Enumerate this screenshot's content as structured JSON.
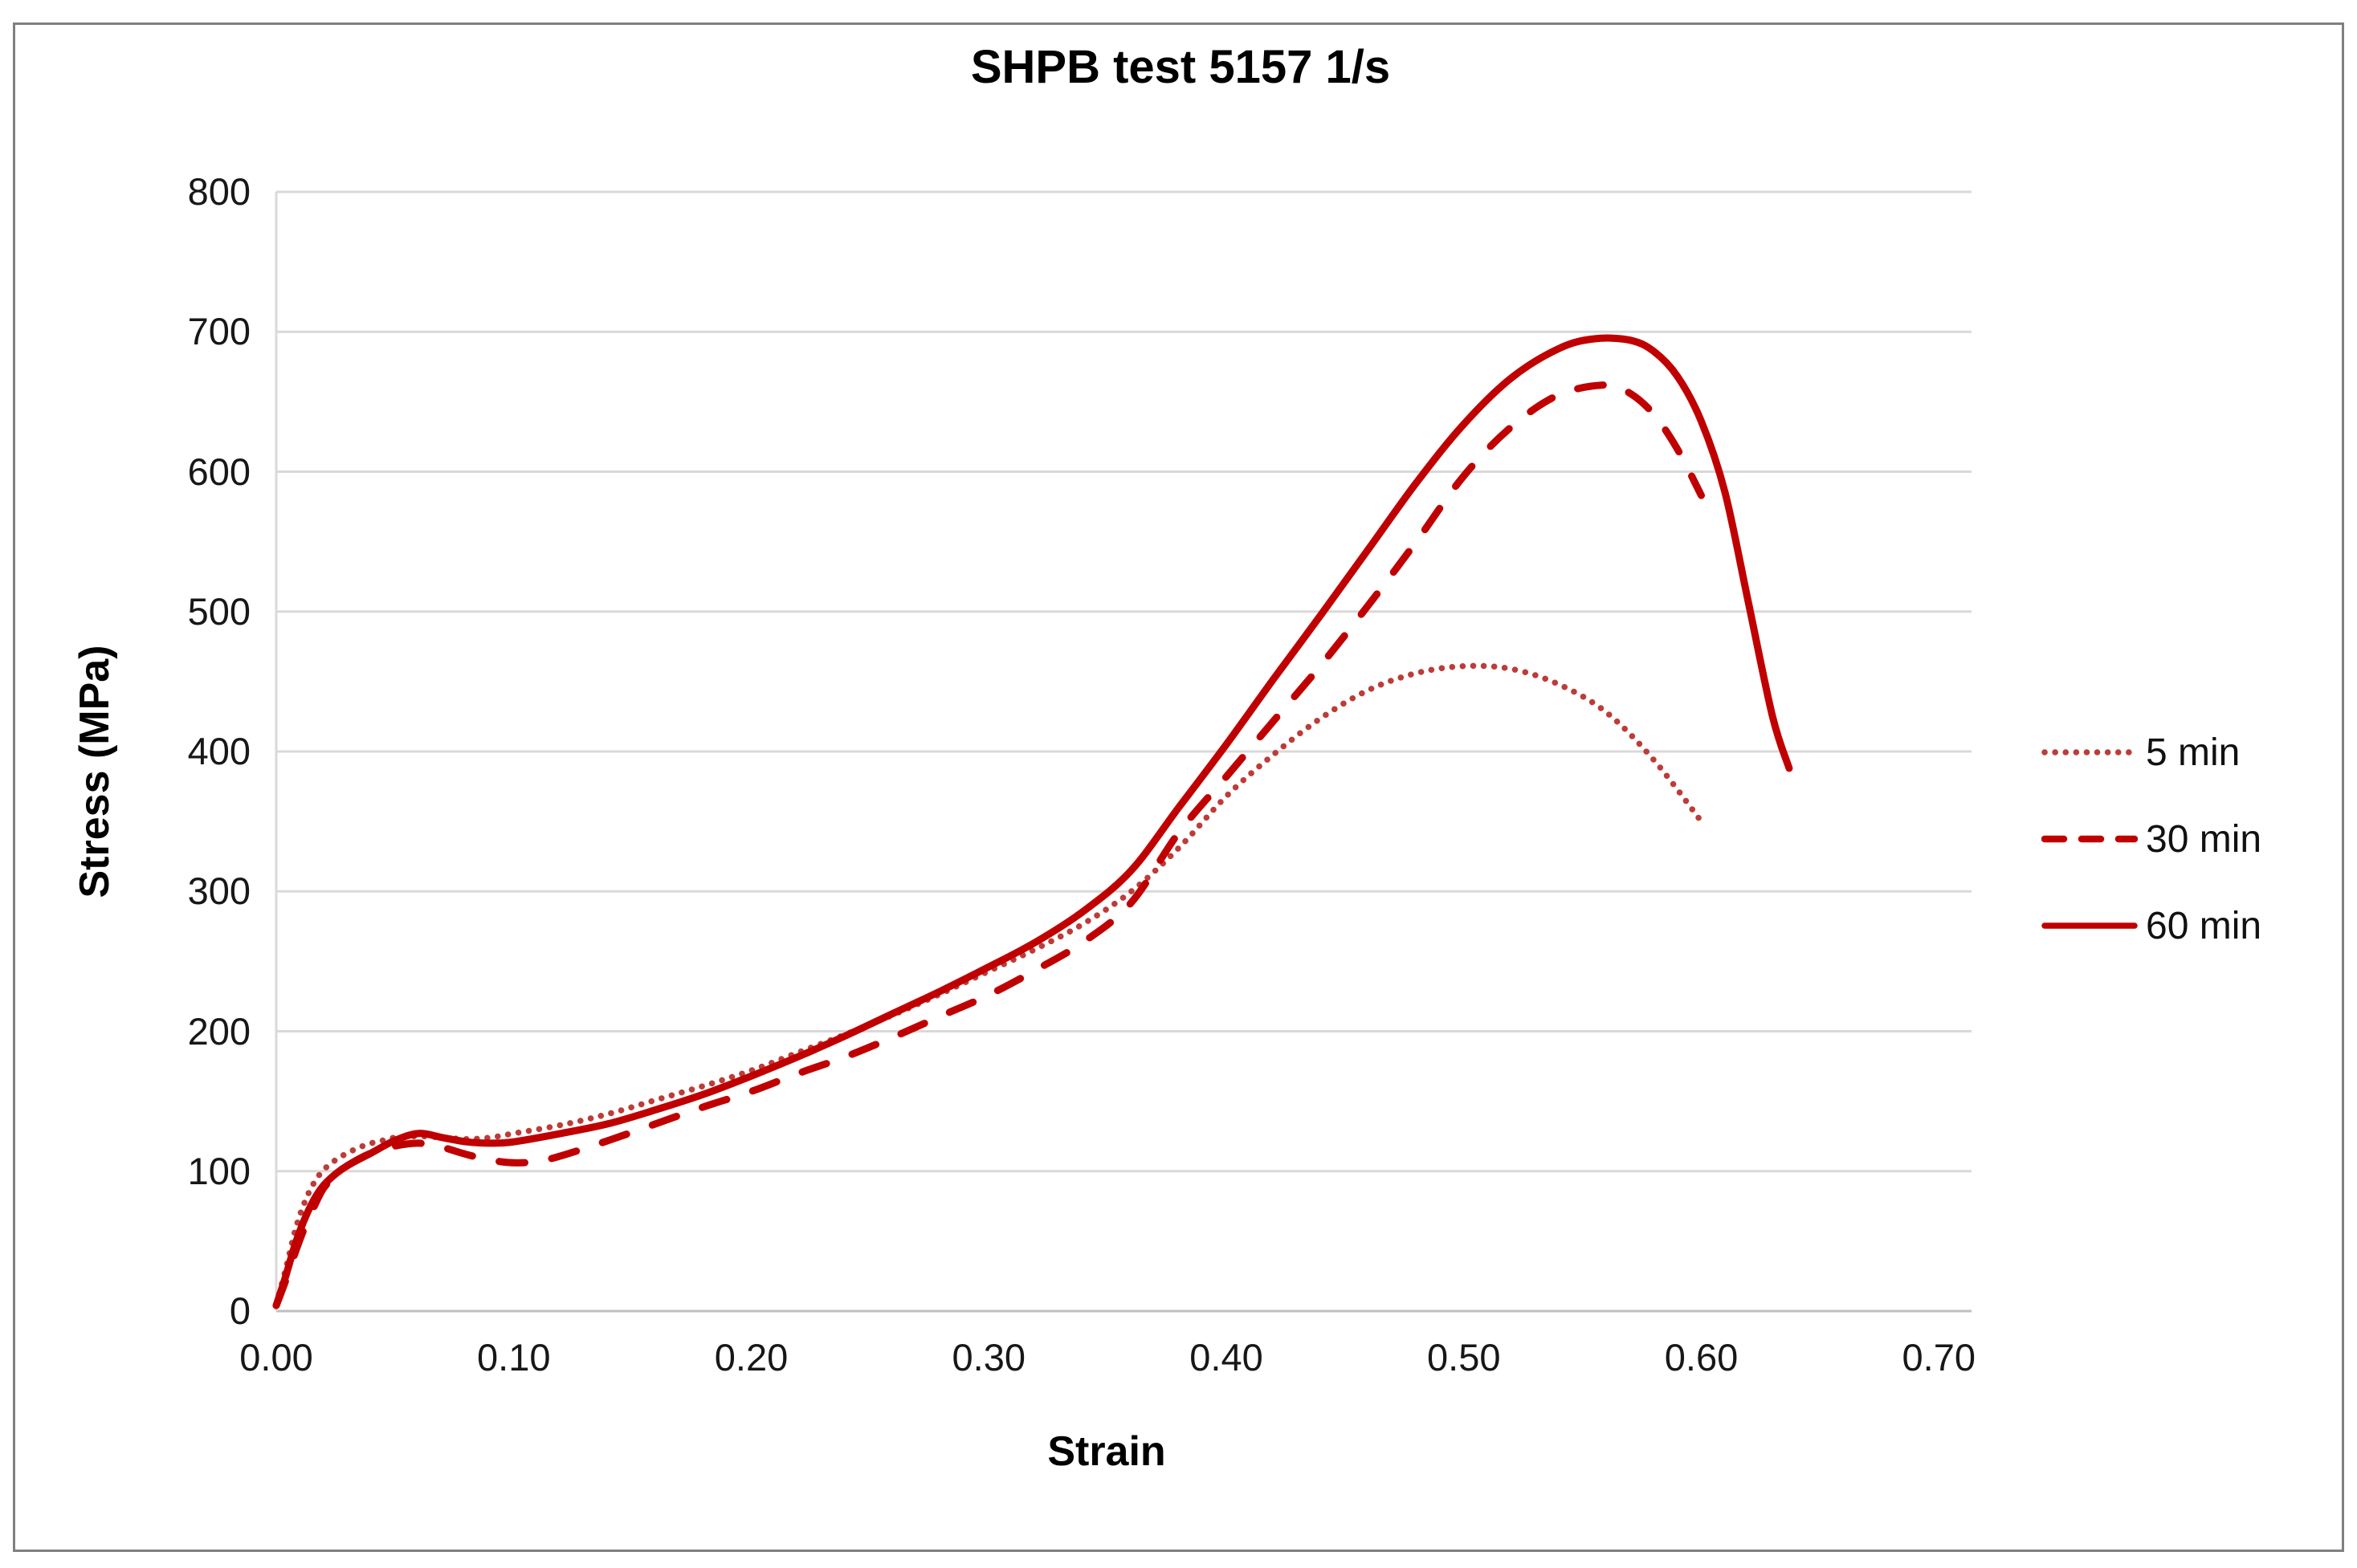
{
  "page": {
    "background": "#FFFFFF",
    "border_color": "#808080"
  },
  "chart_data": {
    "type": "line",
    "title": "SHPB test 5157 1/s",
    "xlabel": "Strain",
    "ylabel": "Stress (MPa)",
    "xlim": [
      0.0,
      0.7
    ],
    "ylim": [
      0,
      800
    ],
    "x_ticks": [
      "0.00",
      "0.10",
      "0.20",
      "0.30",
      "0.40",
      "0.50",
      "0.60",
      "0.70"
    ],
    "y_ticks": [
      "0",
      "100",
      "200",
      "300",
      "400",
      "500",
      "600",
      "700",
      "800"
    ],
    "grid": "horizontal",
    "gridline_color": "#D9D9D9",
    "axisline_color": "#BFBFBF",
    "tick_text_color": "#171717",
    "legend_position": "right",
    "series": [
      {
        "name": "5 min",
        "style": "dotted",
        "color": "#BC3C38",
        "points": [
          [
            0,
            5
          ],
          [
            0.004,
            30
          ],
          [
            0.008,
            58
          ],
          [
            0.012,
            78
          ],
          [
            0.016,
            92
          ],
          [
            0.02,
            101
          ],
          [
            0.025,
            108
          ],
          [
            0.03,
            113
          ],
          [
            0.035,
            117
          ],
          [
            0.04,
            120
          ],
          [
            0.045,
            122
          ],
          [
            0.05,
            124
          ],
          [
            0.06,
            125
          ],
          [
            0.07,
            124
          ],
          [
            0.08,
            123
          ],
          [
            0.09,
            124
          ],
          [
            0.1,
            127
          ],
          [
            0.12,
            133
          ],
          [
            0.14,
            141
          ],
          [
            0.16,
            151
          ],
          [
            0.18,
            161
          ],
          [
            0.2,
            172
          ],
          [
            0.22,
            185
          ],
          [
            0.24,
            198
          ],
          [
            0.26,
            212
          ],
          [
            0.28,
            227
          ],
          [
            0.3,
            243
          ],
          [
            0.32,
            259
          ],
          [
            0.34,
            277
          ],
          [
            0.36,
            300
          ],
          [
            0.38,
            331
          ],
          [
            0.4,
            368
          ],
          [
            0.42,
            398
          ],
          [
            0.44,
            424
          ],
          [
            0.46,
            444
          ],
          [
            0.48,
            456
          ],
          [
            0.5,
            461
          ],
          [
            0.52,
            459
          ],
          [
            0.54,
            448
          ],
          [
            0.56,
            428
          ],
          [
            0.58,
            394
          ],
          [
            0.6,
            350
          ]
        ]
      },
      {
        "name": "30 min",
        "style": "dashed",
        "color": "#C00000",
        "points": [
          [
            0,
            4
          ],
          [
            0.004,
            22
          ],
          [
            0.008,
            42
          ],
          [
            0.012,
            60
          ],
          [
            0.016,
            75
          ],
          [
            0.02,
            88
          ],
          [
            0.025,
            97
          ],
          [
            0.03,
            104
          ],
          [
            0.04,
            113
          ],
          [
            0.05,
            118
          ],
          [
            0.06,
            120
          ],
          [
            0.07,
            117
          ],
          [
            0.08,
            112
          ],
          [
            0.09,
            108
          ],
          [
            0.1,
            106
          ],
          [
            0.11,
            107
          ],
          [
            0.12,
            111
          ],
          [
            0.14,
            122
          ],
          [
            0.16,
            134
          ],
          [
            0.18,
            146
          ],
          [
            0.2,
            157
          ],
          [
            0.22,
            170
          ],
          [
            0.24,
            182
          ],
          [
            0.26,
            196
          ],
          [
            0.28,
            211
          ],
          [
            0.3,
            226
          ],
          [
            0.32,
            244
          ],
          [
            0.34,
            264
          ],
          [
            0.36,
            292
          ],
          [
            0.38,
            342
          ],
          [
            0.4,
            382
          ],
          [
            0.42,
            422
          ],
          [
            0.44,
            462
          ],
          [
            0.46,
            505
          ],
          [
            0.48,
            550
          ],
          [
            0.5,
            597
          ],
          [
            0.52,
            632
          ],
          [
            0.54,
            655
          ],
          [
            0.56,
            662
          ],
          [
            0.57,
            656
          ],
          [
            0.58,
            641
          ],
          [
            0.59,
            616
          ],
          [
            0.6,
            583
          ]
        ]
      },
      {
        "name": "60 min",
        "style": "solid",
        "color": "#C00000",
        "points": [
          [
            0,
            4
          ],
          [
            0.004,
            25
          ],
          [
            0.008,
            48
          ],
          [
            0.012,
            66
          ],
          [
            0.016,
            80
          ],
          [
            0.02,
            90
          ],
          [
            0.025,
            98
          ],
          [
            0.03,
            104
          ],
          [
            0.04,
            113
          ],
          [
            0.05,
            122
          ],
          [
            0.06,
            127
          ],
          [
            0.07,
            124
          ],
          [
            0.08,
            121
          ],
          [
            0.09,
            120
          ],
          [
            0.1,
            121
          ],
          [
            0.12,
            127
          ],
          [
            0.14,
            134
          ],
          [
            0.16,
            144
          ],
          [
            0.18,
            155
          ],
          [
            0.2,
            168
          ],
          [
            0.22,
            182
          ],
          [
            0.24,
            197
          ],
          [
            0.26,
            213
          ],
          [
            0.28,
            229
          ],
          [
            0.3,
            246
          ],
          [
            0.32,
            264
          ],
          [
            0.34,
            286
          ],
          [
            0.36,
            315
          ],
          [
            0.38,
            360
          ],
          [
            0.4,
            405
          ],
          [
            0.42,
            452
          ],
          [
            0.44,
            498
          ],
          [
            0.46,
            545
          ],
          [
            0.48,
            592
          ],
          [
            0.5,
            634
          ],
          [
            0.52,
            667
          ],
          [
            0.54,
            688
          ],
          [
            0.555,
            695
          ],
          [
            0.57,
            694
          ],
          [
            0.58,
            686
          ],
          [
            0.59,
            668
          ],
          [
            0.6,
            636
          ],
          [
            0.61,
            585
          ],
          [
            0.62,
            505
          ],
          [
            0.63,
            425
          ],
          [
            0.637,
            388
          ]
        ]
      }
    ]
  }
}
